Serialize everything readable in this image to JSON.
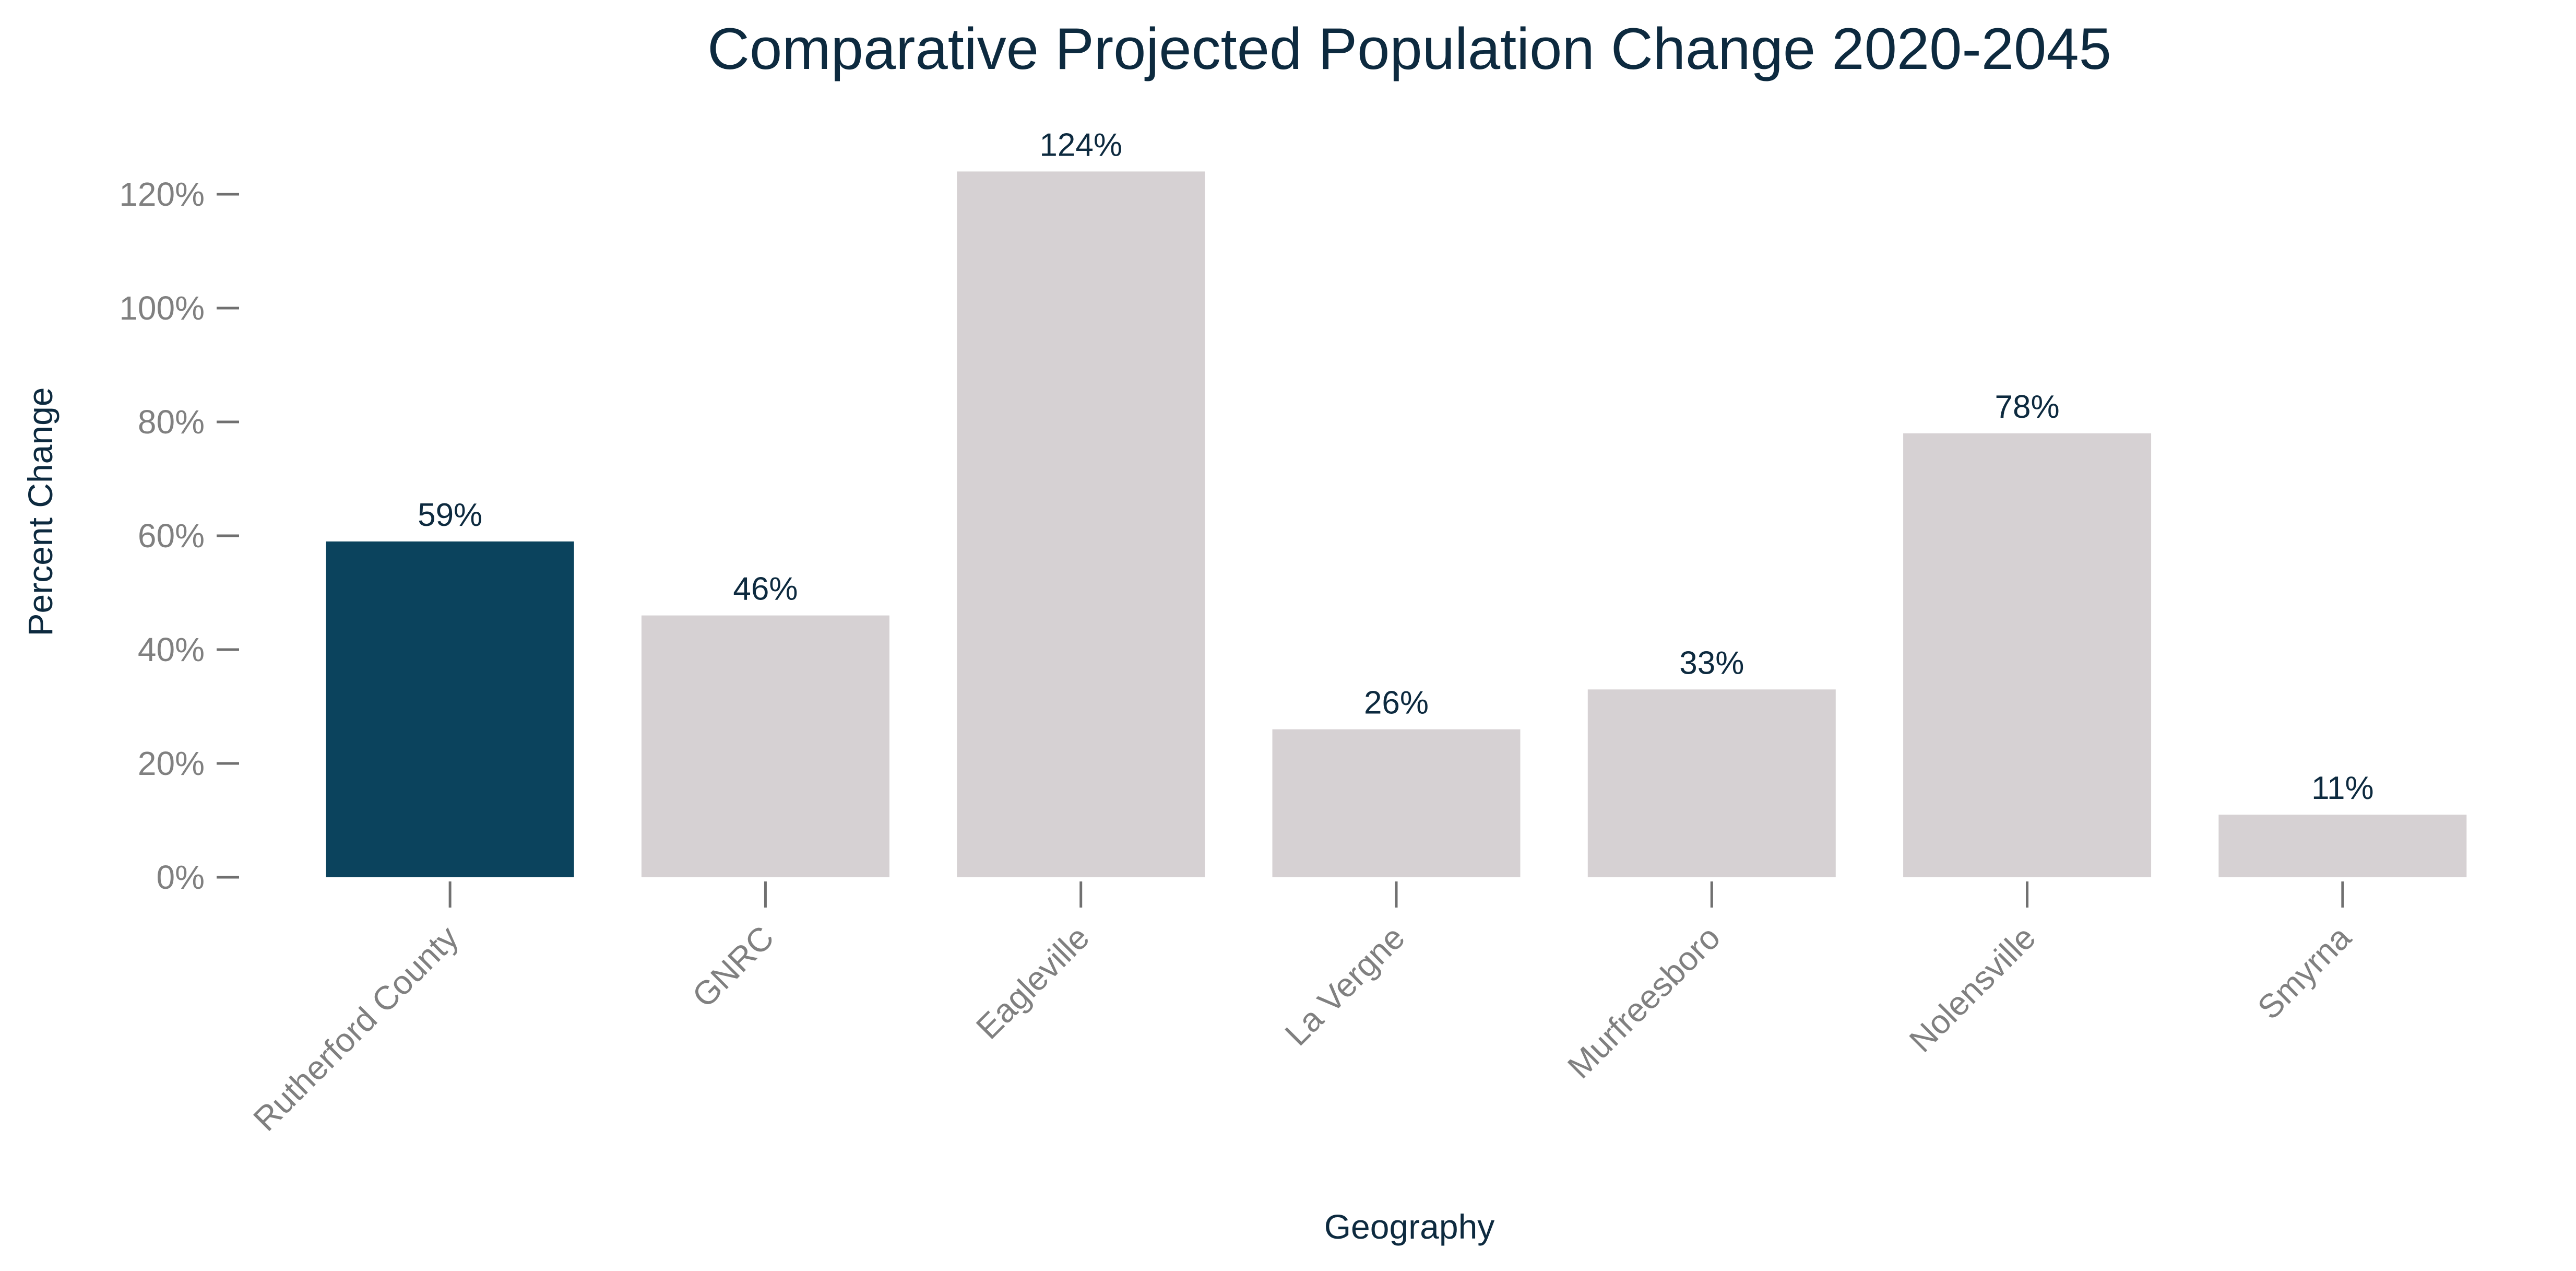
{
  "chart_data": {
    "type": "bar",
    "title": "Comparative Projected Population Change 2020-2045",
    "xlabel": "Geography",
    "ylabel": "Percent Change",
    "categories": [
      "Rutherford County",
      "GNRC",
      "Eagleville",
      "La Vergne",
      "Murfreesboro",
      "Nolensville",
      "Smyrna"
    ],
    "values": [
      59,
      46,
      124,
      26,
      33,
      78,
      11
    ],
    "value_labels": [
      "59%",
      "46%",
      "124%",
      "26%",
      "33%",
      "78%",
      "11%"
    ],
    "ylim": [
      0,
      130
    ],
    "yticks": [
      0,
      20,
      40,
      60,
      80,
      100,
      120
    ],
    "ytick_labels": [
      "0%",
      "20%",
      "40%",
      "60%",
      "80%",
      "100%",
      "120%"
    ],
    "highlight_category": "Rutherford County",
    "grid": false,
    "legend": "none",
    "colors": {
      "highlight": "#0b435d",
      "default": "#d6d1d3",
      "title": "#0d2a3f",
      "tick_text": "#808080",
      "tick_mark": "#707070"
    }
  }
}
